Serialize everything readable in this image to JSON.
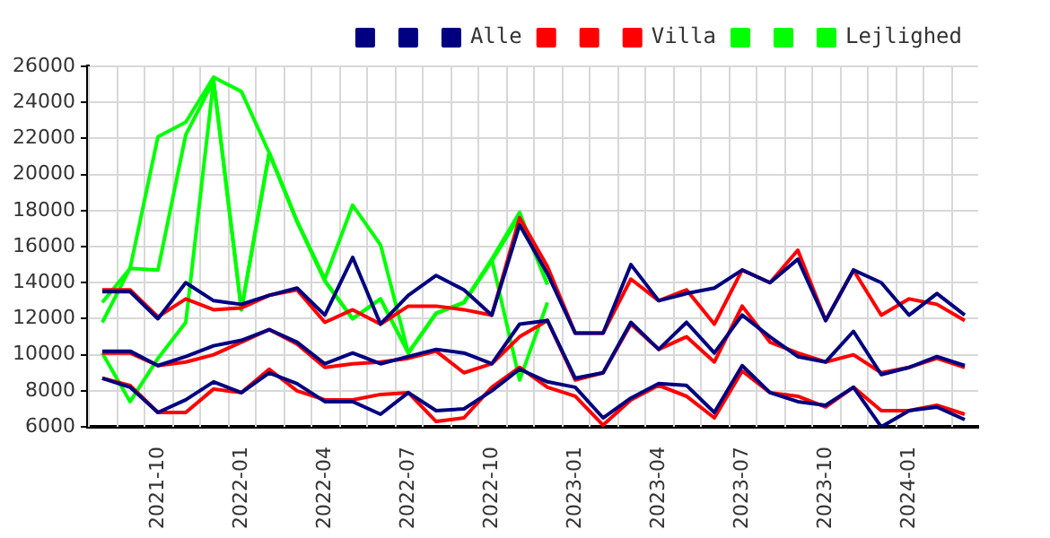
{
  "chart_data": {
    "type": "line",
    "x": [
      "2021-08",
      "2021-09",
      "2021-10",
      "2021-11",
      "2021-12",
      "2022-01",
      "2022-02",
      "2022-03",
      "2022-04",
      "2022-05",
      "2022-06",
      "2022-07",
      "2022-08",
      "2022-09",
      "2022-10",
      "2022-11",
      "2022-12",
      "2023-01",
      "2023-02",
      "2023-03",
      "2023-04",
      "2023-05",
      "2023-06",
      "2023-07",
      "2023-08",
      "2023-09",
      "2023-10",
      "2023-11",
      "2023-12",
      "2024-01",
      "2024-02",
      "2024-03"
    ],
    "xlim": [
      "2021-07-16",
      "2024-03-16"
    ],
    "xticks": [
      "2021-10",
      "2022-01",
      "2022-04",
      "2022-07",
      "2022-10",
      "2023-01",
      "2023-04",
      "2023-07",
      "2023-10",
      "2024-01"
    ],
    "ylim": [
      6000,
      26000
    ],
    "yticks": [
      6000,
      8000,
      10000,
      12000,
      14000,
      16000,
      18000,
      20000,
      22000,
      24000,
      26000
    ],
    "grid": true,
    "legend": "top right",
    "marker": "none",
    "line_style": "solid",
    "series": [
      {
        "color": "#000080",
        "values": [
          13500,
          13500,
          12000,
          14000,
          13000,
          12800,
          13300,
          13700,
          12200,
          15400,
          11700,
          13300,
          14400,
          13600,
          12200,
          17200,
          14500,
          11200,
          11200,
          15000,
          13000,
          13400,
          13700,
          14700,
          14000,
          15300,
          11900,
          14700,
          14000,
          12200,
          13400,
          12200
        ]
      },
      {
        "color": "#000080",
        "values": [
          10200,
          10200,
          9400,
          9900,
          10500,
          10800,
          11400,
          10700,
          9500,
          10100,
          9500,
          9900,
          10300,
          10100,
          9500,
          11700,
          11900,
          8700,
          9000,
          11800,
          10300,
          11800,
          10100,
          12200,
          11000,
          9900,
          9600,
          11300,
          8900,
          9300,
          9900,
          9400
        ]
      },
      {
        "name": "Alle",
        "color": "#000080",
        "values": [
          8700,
          8200,
          6800,
          7500,
          8500,
          7900,
          9000,
          8400,
          7400,
          7400,
          6700,
          7900,
          6900,
          7000,
          8000,
          9200,
          8500,
          8200,
          6500,
          7600,
          8400,
          8300,
          6800,
          9400,
          7900,
          7400,
          7200,
          8200,
          6000,
          6900,
          7100,
          6400
        ]
      },
      {
        "color": "#ff0000",
        "values": [
          13600,
          13600,
          12100,
          13100,
          12500,
          12600,
          13300,
          13600,
          11800,
          12500,
          11700,
          12700,
          12700,
          12500,
          12200,
          17600,
          14900,
          11200,
          11200,
          14200,
          13000,
          13600,
          11700,
          14700,
          14000,
          15800,
          11900,
          14700,
          12200,
          13100,
          12800,
          11900
        ]
      },
      {
        "color": "#ff0000",
        "values": [
          10100,
          10100,
          9400,
          9600,
          10000,
          10700,
          11400,
          10600,
          9300,
          9500,
          9600,
          9800,
          10200,
          9000,
          9500,
          11000,
          11900,
          8600,
          9000,
          11700,
          10300,
          11000,
          9600,
          12700,
          10700,
          10100,
          9600,
          10000,
          9000,
          9300,
          9800,
          9300
        ]
      },
      {
        "name": "Villa",
        "color": "#ff0000",
        "values": [
          8700,
          8300,
          6800,
          6800,
          8100,
          7900,
          9200,
          8000,
          7500,
          7500,
          7800,
          7900,
          6300,
          6500,
          8200,
          9300,
          8200,
          7700,
          6100,
          7500,
          8300,
          7700,
          6500,
          9100,
          7900,
          7700,
          7100,
          8200,
          6900,
          6900,
          7200,
          6700
        ]
      },
      {
        "color": "#00ff00",
        "values": [
          12900,
          14800,
          22100,
          22900,
          25400,
          24600,
          21200,
          17400,
          14200,
          18300,
          16100,
          10100,
          12300,
          12900,
          15300,
          17900,
          13900,
          null,
          null,
          null,
          null,
          null,
          null,
          null,
          null,
          null,
          null,
          null,
          null,
          null,
          null,
          null
        ]
      },
      {
        "color": "#00ff00",
        "values": [
          11800,
          14800,
          14700,
          22200,
          25200,
          12500,
          21200,
          17400,
          14100,
          12000,
          13100,
          10100,
          12300,
          12900,
          15200,
          17700,
          13900,
          null,
          null,
          null,
          null,
          null,
          null,
          null,
          null,
          null,
          null,
          null,
          null,
          null,
          null,
          null
        ]
      },
      {
        "name": "Lejlighed",
        "color": "#00ff00",
        "values": [
          10100,
          7400,
          9800,
          11800,
          25200,
          12500,
          21200,
          17400,
          14100,
          12000,
          13100,
          10100,
          12300,
          12900,
          15300,
          8600,
          12900,
          null,
          null,
          null,
          null,
          null,
          null,
          null,
          null,
          null,
          null,
          null,
          null,
          null,
          null,
          null
        ]
      }
    ]
  }
}
